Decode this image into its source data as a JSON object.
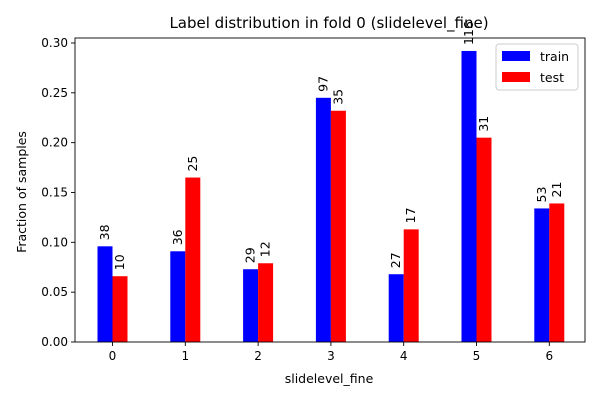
{
  "chart_data": {
    "type": "bar",
    "title": "Label distribution in fold 0 (slidelevel_fine)",
    "xlabel": "slidelevel_fine",
    "ylabel": "Fraction of samples",
    "categories": [
      "0",
      "1",
      "2",
      "3",
      "4",
      "5",
      "6"
    ],
    "ylim": [
      0,
      0.305
    ],
    "yticks": [
      0.0,
      0.05,
      0.1,
      0.15,
      0.2,
      0.25,
      0.3
    ],
    "ytick_labels": [
      "0.00",
      "0.05",
      "0.10",
      "0.15",
      "0.20",
      "0.25",
      "0.30"
    ],
    "grid": false,
    "legend_position": "top-right",
    "series": [
      {
        "name": "train",
        "color": "#0000ff",
        "values": [
          0.096,
          0.091,
          0.073,
          0.245,
          0.068,
          0.292,
          0.134
        ],
        "labels": [
          "38",
          "36",
          "29",
          "97",
          "27",
          "116",
          "53"
        ]
      },
      {
        "name": "test",
        "color": "#ff0000",
        "values": [
          0.066,
          0.165,
          0.079,
          0.232,
          0.113,
          0.205,
          0.139
        ],
        "labels": [
          "10",
          "25",
          "12",
          "35",
          "17",
          "31",
          "21"
        ]
      }
    ]
  }
}
